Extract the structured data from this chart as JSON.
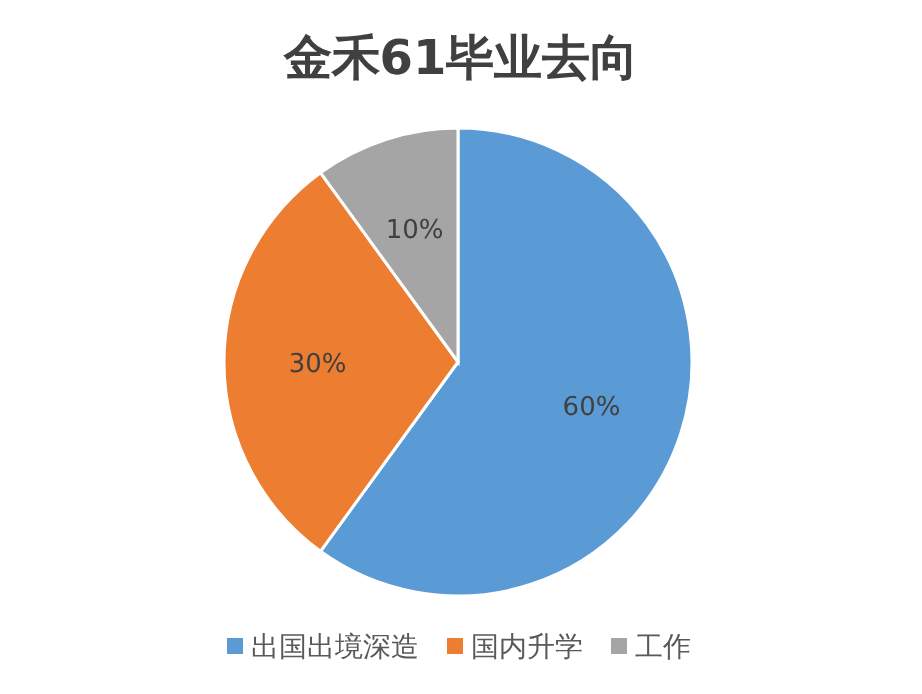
{
  "chart_data": {
    "type": "pie",
    "title": "金禾61毕业去向",
    "categories": [
      "出国出境深造",
      "国内升学",
      "工作"
    ],
    "values": [
      60,
      30,
      10
    ],
    "value_labels": [
      "60%",
      "30%",
      "10%"
    ],
    "colors": [
      "#5b9bd5",
      "#ed7d31",
      "#a5a5a5"
    ],
    "legend": "bottom"
  }
}
